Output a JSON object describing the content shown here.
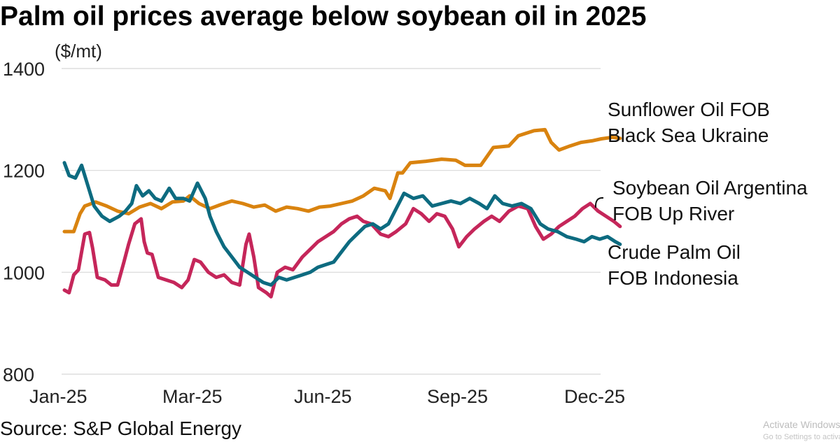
{
  "chart_data": {
    "type": "line",
    "title": "Palm oil prices average below soybean oil in 2025",
    "ylabel": "($/mt)",
    "ylim": [
      800,
      1400
    ],
    "yticks": [
      "800",
      "1000",
      "1200",
      "1400"
    ],
    "xlim": [
      "2025-01-01",
      "2025-12-31"
    ],
    "xticks": [
      {
        "label": "Jan-25",
        "date": "2025-01-01"
      },
      {
        "label": "Mar-25",
        "date": "2025-03-01"
      },
      {
        "label": "Jun-25",
        "date": "2025-06-01"
      },
      {
        "label": "Sep-25",
        "date": "2025-09-01"
      },
      {
        "label": "Dec-25",
        "date": "2025-12-01"
      }
    ],
    "grid": true,
    "series": [
      {
        "name_lines": [
          "Sunflower Oil FOB",
          "Black Sea Ukraine"
        ],
        "color": "#d9830f",
        "points": [
          [
            "2025-01-01",
            1080
          ],
          [
            "2025-01-07",
            1080
          ],
          [
            "2025-01-11",
            1115
          ],
          [
            "2025-01-14",
            1130
          ],
          [
            "2025-01-21",
            1138
          ],
          [
            "2025-01-28",
            1130
          ],
          [
            "2025-02-04",
            1120
          ],
          [
            "2025-02-11",
            1115
          ],
          [
            "2025-02-18",
            1128
          ],
          [
            "2025-02-25",
            1135
          ],
          [
            "2025-03-04",
            1125
          ],
          [
            "2025-03-11",
            1138
          ],
          [
            "2025-03-18",
            1140
          ],
          [
            "2025-03-22",
            1150
          ],
          [
            "2025-03-28",
            1135
          ],
          [
            "2025-04-04",
            1125
          ],
          [
            "2025-04-11",
            1133
          ],
          [
            "2025-04-18",
            1140
          ],
          [
            "2025-04-25",
            1135
          ],
          [
            "2025-05-02",
            1128
          ],
          [
            "2025-05-09",
            1132
          ],
          [
            "2025-05-16",
            1120
          ],
          [
            "2025-05-23",
            1128
          ],
          [
            "2025-05-30",
            1125
          ],
          [
            "2025-06-06",
            1120
          ],
          [
            "2025-06-13",
            1128
          ],
          [
            "2025-06-20",
            1130
          ],
          [
            "2025-06-27",
            1135
          ],
          [
            "2025-07-04",
            1140
          ],
          [
            "2025-07-11",
            1150
          ],
          [
            "2025-07-18",
            1165
          ],
          [
            "2025-07-25",
            1160
          ],
          [
            "2025-07-28",
            1145
          ],
          [
            "2025-08-02",
            1195
          ],
          [
            "2025-08-05",
            1195
          ],
          [
            "2025-08-10",
            1215
          ],
          [
            "2025-08-20",
            1218
          ],
          [
            "2025-08-30",
            1222
          ],
          [
            "2025-09-08",
            1220
          ],
          [
            "2025-09-14",
            1210
          ],
          [
            "2025-09-24",
            1210
          ],
          [
            "2025-10-02",
            1245
          ],
          [
            "2025-10-12",
            1248
          ],
          [
            "2025-10-18",
            1268
          ],
          [
            "2025-10-28",
            1278
          ],
          [
            "2025-11-04",
            1280
          ],
          [
            "2025-11-08",
            1255
          ],
          [
            "2025-11-13",
            1240
          ],
          [
            "2025-11-20",
            1248
          ],
          [
            "2025-11-27",
            1255
          ],
          [
            "2025-12-04",
            1258
          ],
          [
            "2025-12-10",
            1262
          ],
          [
            "2025-12-17",
            1265
          ],
          [
            "2025-12-22",
            1263
          ]
        ]
      },
      {
        "name_lines": [
          "Soybean Oil Argentina",
          "FOB Up River"
        ],
        "color": "#c5265a",
        "points": [
          [
            "2025-01-01",
            965
          ],
          [
            "2025-01-04",
            960
          ],
          [
            "2025-01-07",
            995
          ],
          [
            "2025-01-10",
            1005
          ],
          [
            "2025-01-14",
            1075
          ],
          [
            "2025-01-17",
            1078
          ],
          [
            "2025-01-19",
            1048
          ],
          [
            "2025-01-22",
            990
          ],
          [
            "2025-01-27",
            985
          ],
          [
            "2025-01-31",
            975
          ],
          [
            "2025-02-04",
            975
          ],
          [
            "2025-02-08",
            1020
          ],
          [
            "2025-02-11",
            1055
          ],
          [
            "2025-02-15",
            1095
          ],
          [
            "2025-02-19",
            1105
          ],
          [
            "2025-02-21",
            1060
          ],
          [
            "2025-02-23",
            1038
          ],
          [
            "2025-02-26",
            1035
          ],
          [
            "2025-03-02",
            990
          ],
          [
            "2025-03-07",
            985
          ],
          [
            "2025-03-12",
            980
          ],
          [
            "2025-03-17",
            970
          ],
          [
            "2025-03-21",
            985
          ],
          [
            "2025-03-25",
            1025
          ],
          [
            "2025-03-29",
            1020
          ],
          [
            "2025-04-03",
            1000
          ],
          [
            "2025-04-08",
            990
          ],
          [
            "2025-04-13",
            995
          ],
          [
            "2025-04-18",
            980
          ],
          [
            "2025-04-23",
            975
          ],
          [
            "2025-04-27",
            1055
          ],
          [
            "2025-04-29",
            1075
          ],
          [
            "2025-05-02",
            1030
          ],
          [
            "2025-05-05",
            970
          ],
          [
            "2025-05-10",
            960
          ],
          [
            "2025-05-13",
            952
          ],
          [
            "2025-05-17",
            1000
          ],
          [
            "2025-05-22",
            1010
          ],
          [
            "2025-05-27",
            1005
          ],
          [
            "2025-06-02",
            1030
          ],
          [
            "2025-06-07",
            1045
          ],
          [
            "2025-06-12",
            1060
          ],
          [
            "2025-06-17",
            1070
          ],
          [
            "2025-06-22",
            1080
          ],
          [
            "2025-06-27",
            1095
          ],
          [
            "2025-07-02",
            1105
          ],
          [
            "2025-07-07",
            1110
          ],
          [
            "2025-07-11",
            1100
          ],
          [
            "2025-07-16",
            1095
          ],
          [
            "2025-07-22",
            1075
          ],
          [
            "2025-07-27",
            1070
          ],
          [
            "2025-08-01",
            1080
          ],
          [
            "2025-08-07",
            1095
          ],
          [
            "2025-08-12",
            1125
          ],
          [
            "2025-08-17",
            1115
          ],
          [
            "2025-08-22",
            1100
          ],
          [
            "2025-08-27",
            1115
          ],
          [
            "2025-09-01",
            1110
          ],
          [
            "2025-09-06",
            1085
          ],
          [
            "2025-09-10",
            1050
          ],
          [
            "2025-09-15",
            1070
          ],
          [
            "2025-09-20",
            1085
          ],
          [
            "2025-09-26",
            1100
          ],
          [
            "2025-10-01",
            1110
          ],
          [
            "2025-10-06",
            1100
          ],
          [
            "2025-10-12",
            1120
          ],
          [
            "2025-10-18",
            1130
          ],
          [
            "2025-10-24",
            1125
          ],
          [
            "2025-10-29",
            1090
          ],
          [
            "2025-11-03",
            1065
          ],
          [
            "2025-11-08",
            1075
          ],
          [
            "2025-11-13",
            1090
          ],
          [
            "2025-11-18",
            1100
          ],
          [
            "2025-11-23",
            1110
          ],
          [
            "2025-11-28",
            1125
          ],
          [
            "2025-12-03",
            1135
          ],
          [
            "2025-12-08",
            1120
          ],
          [
            "2025-12-13",
            1110
          ],
          [
            "2025-12-18",
            1100
          ],
          [
            "2025-12-22",
            1090
          ]
        ]
      },
      {
        "name_lines": [
          "Crude Palm Oil",
          "FOB Indonesia"
        ],
        "color": "#0d6b80",
        "points": [
          [
            "2025-01-01",
            1215
          ],
          [
            "2025-01-04",
            1190
          ],
          [
            "2025-01-08",
            1185
          ],
          [
            "2025-01-12",
            1210
          ],
          [
            "2025-01-17",
            1160
          ],
          [
            "2025-01-20",
            1130
          ],
          [
            "2025-01-25",
            1110
          ],
          [
            "2025-01-30",
            1100
          ],
          [
            "2025-02-05",
            1110
          ],
          [
            "2025-02-09",
            1120
          ],
          [
            "2025-02-13",
            1135
          ],
          [
            "2025-02-16",
            1170
          ],
          [
            "2025-02-20",
            1150
          ],
          [
            "2025-02-24",
            1160
          ],
          [
            "2025-02-28",
            1145
          ],
          [
            "2025-03-04",
            1140
          ],
          [
            "2025-03-09",
            1165
          ],
          [
            "2025-03-13",
            1145
          ],
          [
            "2025-03-18",
            1145
          ],
          [
            "2025-03-22",
            1140
          ],
          [
            "2025-03-27",
            1175
          ],
          [
            "2025-04-01",
            1145
          ],
          [
            "2025-04-04",
            1110
          ],
          [
            "2025-04-08",
            1080
          ],
          [
            "2025-04-13",
            1050
          ],
          [
            "2025-04-18",
            1030
          ],
          [
            "2025-04-23",
            1010
          ],
          [
            "2025-04-28",
            1000
          ],
          [
            "2025-05-03",
            990
          ],
          [
            "2025-05-08",
            980
          ],
          [
            "2025-05-13",
            975
          ],
          [
            "2025-05-18",
            990
          ],
          [
            "2025-05-23",
            985
          ],
          [
            "2025-05-28",
            990
          ],
          [
            "2025-06-02",
            995
          ],
          [
            "2025-06-07",
            1000
          ],
          [
            "2025-06-12",
            1010
          ],
          [
            "2025-06-17",
            1015
          ],
          [
            "2025-06-22",
            1020
          ],
          [
            "2025-06-27",
            1040
          ],
          [
            "2025-07-02",
            1060
          ],
          [
            "2025-07-07",
            1075
          ],
          [
            "2025-07-12",
            1090
          ],
          [
            "2025-07-17",
            1095
          ],
          [
            "2025-07-22",
            1085
          ],
          [
            "2025-07-27",
            1095
          ],
          [
            "2025-08-01",
            1125
          ],
          [
            "2025-08-06",
            1155
          ],
          [
            "2025-08-12",
            1145
          ],
          [
            "2025-08-18",
            1150
          ],
          [
            "2025-08-24",
            1130
          ],
          [
            "2025-08-30",
            1135
          ],
          [
            "2025-09-05",
            1140
          ],
          [
            "2025-09-11",
            1135
          ],
          [
            "2025-09-17",
            1145
          ],
          [
            "2025-09-23",
            1135
          ],
          [
            "2025-09-28",
            1125
          ],
          [
            "2025-10-03",
            1150
          ],
          [
            "2025-10-08",
            1135
          ],
          [
            "2025-10-14",
            1130
          ],
          [
            "2025-10-20",
            1135
          ],
          [
            "2025-10-26",
            1125
          ],
          [
            "2025-11-01",
            1095
          ],
          [
            "2025-11-06",
            1085
          ],
          [
            "2025-11-12",
            1080
          ],
          [
            "2025-11-18",
            1070
          ],
          [
            "2025-11-24",
            1065
          ],
          [
            "2025-11-29",
            1060
          ],
          [
            "2025-12-04",
            1070
          ],
          [
            "2025-12-09",
            1065
          ],
          [
            "2025-12-14",
            1070
          ],
          [
            "2025-12-19",
            1060
          ],
          [
            "2025-12-22",
            1055
          ]
        ]
      }
    ]
  },
  "source": "Source: S&P Global Energy",
  "watermark": {
    "line1": "Activate Windows",
    "line2": "Go to Settings to activate Windows."
  }
}
